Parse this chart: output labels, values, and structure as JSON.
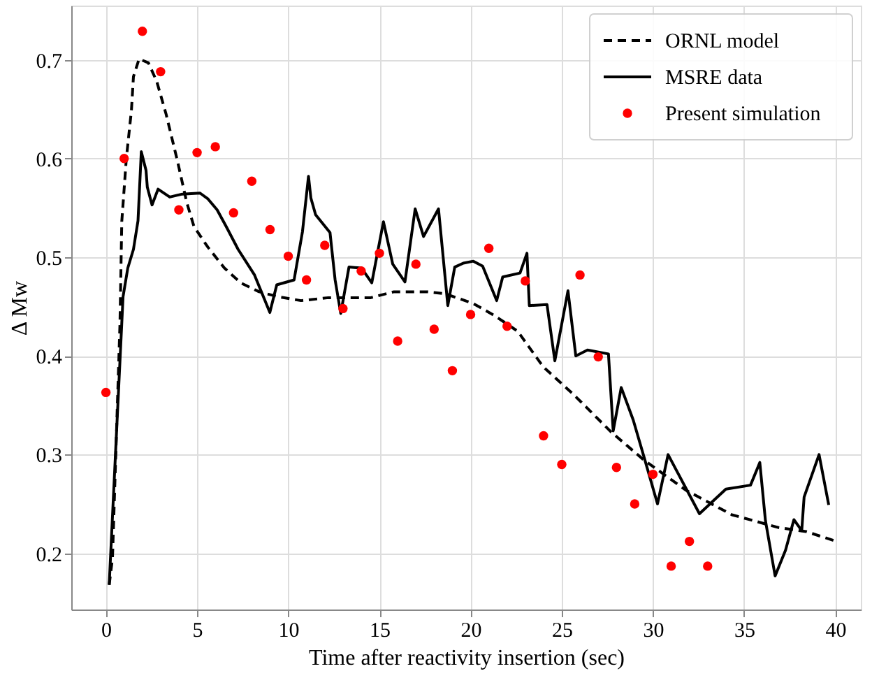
{
  "chart_data": {
    "type": "line",
    "xlabel": "Time after reactivity insertion (sec)",
    "ylabel": "Δ Mw",
    "xlim": [
      -1.9,
      41.4
    ],
    "ylim": [
      0.143,
      0.755
    ],
    "xticks": [
      0,
      5,
      10,
      15,
      20,
      25,
      30,
      35,
      40
    ],
    "yticks": [
      0.2,
      0.3,
      0.4,
      0.5,
      0.6,
      0.7
    ],
    "grid": true,
    "legend": "top right",
    "series": [
      {
        "name": "ORNL model",
        "line_style": "dashed",
        "color": "#000000",
        "x": [
          0.18,
          0.36,
          0.77,
          0.87,
          1.12,
          1.4,
          1.51,
          1.82,
          2.33,
          2.79,
          3.3,
          3.93,
          4.44,
          4.83,
          5.6,
          6.5,
          7.4,
          8.4,
          9.43,
          10.7,
          12.2,
          14.53,
          15.8,
          17.6,
          18.62,
          20.15,
          21.3,
          22.58,
          23.98,
          25.64,
          27.7,
          29.47,
          31.8,
          34.33,
          36.9,
          38.4,
          39.9
        ],
        "values": [
          0.168,
          0.195,
          0.432,
          0.536,
          0.6,
          0.649,
          0.683,
          0.701,
          0.697,
          0.678,
          0.645,
          0.597,
          0.555,
          0.531,
          0.51,
          0.489,
          0.474,
          0.465,
          0.46,
          0.456,
          0.459,
          0.459,
          0.465,
          0.465,
          0.463,
          0.453,
          0.441,
          0.425,
          0.389,
          0.361,
          0.323,
          0.295,
          0.264,
          0.239,
          0.226,
          0.222,
          0.213
        ]
      },
      {
        "name": "MSRE data",
        "line_style": "solid",
        "color": "#000000",
        "x": [
          0.18,
          0.94,
          1.2,
          1.51,
          1.76,
          1.94,
          2.2,
          2.27,
          2.53,
          2.86,
          3.5,
          4.19,
          5.16,
          5.6,
          6.1,
          6.6,
          7.25,
          8.15,
          8.99,
          9.37,
          10.32,
          10.78,
          11.11,
          11.24,
          11.5,
          12.29,
          12.57,
          12.88,
          13.33,
          14.02,
          14.58,
          15.22,
          15.73,
          16.4,
          16.96,
          17.42,
          18.24,
          18.75,
          19.13,
          19.6,
          20.15,
          20.66,
          21.43,
          21.76,
          22.71,
          23.09,
          23.22,
          24.19,
          24.62,
          25.34,
          25.77,
          26.41,
          27.56,
          27.82,
          28.26,
          28.92,
          29.55,
          30.25,
          30.83,
          32.55,
          34.0,
          35.35,
          35.86,
          36.17,
          36.7,
          37.27,
          37.73,
          38.16,
          38.29,
          39.11,
          39.64
        ],
        "values": [
          0.168,
          0.46,
          0.489,
          0.508,
          0.537,
          0.607,
          0.588,
          0.571,
          0.553,
          0.569,
          0.561,
          0.564,
          0.565,
          0.559,
          0.548,
          0.531,
          0.508,
          0.482,
          0.444,
          0.472,
          0.477,
          0.526,
          0.582,
          0.56,
          0.543,
          0.525,
          0.477,
          0.443,
          0.49,
          0.489,
          0.474,
          0.536,
          0.493,
          0.475,
          0.549,
          0.521,
          0.549,
          0.451,
          0.49,
          0.494,
          0.496,
          0.491,
          0.456,
          0.48,
          0.484,
          0.504,
          0.451,
          0.452,
          0.395,
          0.466,
          0.4,
          0.406,
          0.402,
          0.324,
          0.368,
          0.335,
          0.295,
          0.25,
          0.3,
          0.24,
          0.265,
          0.269,
          0.292,
          0.233,
          0.177,
          0.203,
          0.234,
          0.223,
          0.257,
          0.3,
          0.249
        ]
      },
      {
        "name": "Present simulation",
        "type": "scatter",
        "marker": "circle",
        "color": "#ff0000",
        "x": [
          0,
          1,
          2,
          3,
          4,
          5,
          6,
          7,
          8,
          9,
          10,
          11,
          12,
          13,
          14,
          15,
          16,
          17,
          18,
          19,
          20,
          21,
          22,
          23,
          24,
          25,
          26,
          27,
          28,
          29,
          30,
          31,
          32,
          33
        ],
        "values": [
          0.363,
          0.6,
          0.729,
          0.688,
          0.548,
          0.606,
          0.612,
          0.545,
          0.577,
          0.528,
          0.501,
          0.477,
          0.512,
          0.448,
          0.486,
          0.504,
          0.415,
          0.493,
          0.427,
          0.385,
          0.442,
          0.509,
          0.43,
          0.476,
          0.319,
          0.29,
          0.482,
          0.399,
          0.287,
          0.25,
          0.28,
          0.187,
          0.212,
          0.187
        ]
      }
    ]
  }
}
